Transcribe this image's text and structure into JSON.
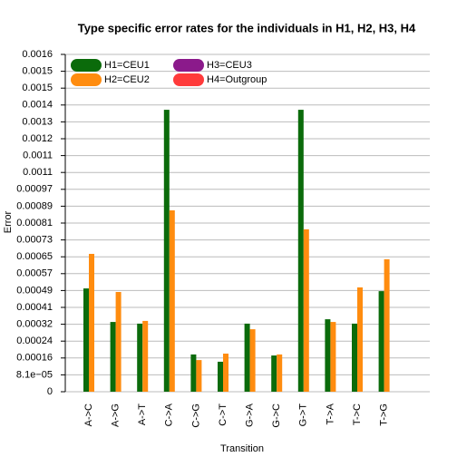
{
  "chart_data": {
    "type": "bar",
    "title": "Type specific error rates for the individuals in H1, H2, H3, H4",
    "xlabel": "Transition",
    "ylabel": "Error",
    "categories": [
      "A->C",
      "A->G",
      "A->T",
      "C->A",
      "C->G",
      "C->T",
      "G->A",
      "G->C",
      "G->T",
      "T->A",
      "T->C",
      "T->G"
    ],
    "series": [
      {
        "name": "H1=CEU1",
        "color": "#0b6b0b",
        "values": [
          0.000496,
          0.000335,
          0.000327,
          0.001354,
          0.000179,
          0.000144,
          0.000327,
          0.000174,
          0.001354,
          0.000348,
          0.000327,
          0.000483
        ]
      },
      {
        "name": "H2=CEU2",
        "color": "#ff8c0f",
        "values": [
          0.000662,
          0.000479,
          0.00034,
          0.000871,
          0.000152,
          0.000183,
          0.0003,
          0.000179,
          0.00078,
          0.000335,
          0.000501,
          0.000636
        ]
      },
      {
        "name": "H3=CEU3",
        "color": "#8b1a8b",
        "values": [
          null,
          null,
          null,
          null,
          null,
          null,
          null,
          null,
          null,
          null,
          null,
          null
        ]
      },
      {
        "name": "H4=Outgroup",
        "color": "#ff3b3b",
        "values": [
          null,
          null,
          null,
          null,
          null,
          null,
          null,
          null,
          null,
          null,
          null,
          null
        ]
      }
    ],
    "ylim": [
      0,
      0.00162
    ],
    "yticks": [
      0,
      {
        "value": 8.1e-05,
        "label": "8.1e−05"
      },
      {
        "value": 0.000162,
        "label": "0.00016"
      },
      {
        "value": 0.000243,
        "label": "0.00024"
      },
      {
        "value": 0.000324,
        "label": "0.00032"
      },
      {
        "value": 0.000405,
        "label": "0.00041"
      },
      {
        "value": 0.000486,
        "label": "0.00049"
      },
      {
        "value": 0.000567,
        "label": "0.00057"
      },
      {
        "value": 0.000648,
        "label": "0.00065"
      },
      {
        "value": 0.000729,
        "label": "0.00073"
      },
      {
        "value": 0.00081,
        "label": "0.00081"
      },
      {
        "value": 0.000891,
        "label": "0.00089"
      },
      {
        "value": 0.000972,
        "label": "0.00097"
      },
      {
        "value": 0.001053,
        "label": "0.0011"
      },
      {
        "value": 0.001134,
        "label": "0.0011"
      },
      {
        "value": 0.001215,
        "label": "0.0012"
      },
      {
        "value": 0.001296,
        "label": "0.0013"
      },
      {
        "value": 0.001377,
        "label": "0.0014"
      },
      {
        "value": 0.001458,
        "label": "0.0015"
      },
      {
        "value": 0.001539,
        "label": "0.0015"
      },
      {
        "value": 0.00162,
        "label": "0.0016"
      }
    ],
    "grid": true,
    "legend": "upper left"
  }
}
